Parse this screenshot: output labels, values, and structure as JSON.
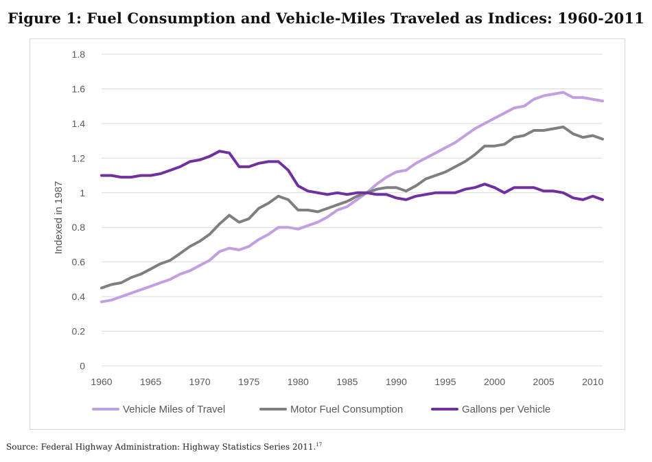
{
  "figure": {
    "title": "Figure 1: Fuel Consumption and Vehicle-Miles Traveled as Indices: 1960-2011",
    "source": "Source: Federal Highway Administration: Highway Statistics Series 2011.",
    "source_footnote": "17"
  },
  "chart_data": {
    "type": "line",
    "title": "Figure 1: Fuel Consumption and Vehicle-Miles Traveled as Indices: 1960-2011",
    "xlabel": "",
    "ylabel": "Indexed in 1987",
    "xlim": [
      1960,
      2011
    ],
    "ylim": [
      0,
      1.8
    ],
    "xticks": [
      "1960",
      "1965",
      "1970",
      "1975",
      "1980",
      "1985",
      "1990",
      "1995",
      "2000",
      "2005",
      "2010"
    ],
    "yticks": [
      "0",
      "0.2",
      "0.4",
      "0.6",
      "0.8",
      "1",
      "1.2",
      "1.4",
      "1.6",
      "1.8"
    ],
    "grid": true,
    "legend_position": "bottom",
    "x": [
      1960,
      1961,
      1962,
      1963,
      1964,
      1965,
      1966,
      1967,
      1968,
      1969,
      1970,
      1971,
      1972,
      1973,
      1974,
      1975,
      1976,
      1977,
      1978,
      1979,
      1980,
      1981,
      1982,
      1983,
      1984,
      1985,
      1986,
      1987,
      1988,
      1989,
      1990,
      1991,
      1992,
      1993,
      1994,
      1995,
      1996,
      1997,
      1998,
      1999,
      2000,
      2001,
      2002,
      2003,
      2004,
      2005,
      2006,
      2007,
      2008,
      2009,
      2010,
      2011
    ],
    "series": [
      {
        "name": "Vehicle Miles of Travel",
        "color": "#c29fe0",
        "values": [
          0.37,
          0.38,
          0.4,
          0.42,
          0.44,
          0.46,
          0.48,
          0.5,
          0.53,
          0.55,
          0.58,
          0.61,
          0.66,
          0.68,
          0.67,
          0.69,
          0.73,
          0.76,
          0.8,
          0.8,
          0.79,
          0.81,
          0.83,
          0.86,
          0.9,
          0.92,
          0.96,
          1.0,
          1.05,
          1.09,
          1.12,
          1.13,
          1.17,
          1.2,
          1.23,
          1.26,
          1.29,
          1.33,
          1.37,
          1.4,
          1.43,
          1.46,
          1.49,
          1.5,
          1.54,
          1.56,
          1.57,
          1.58,
          1.55,
          1.55,
          1.54,
          1.53
        ]
      },
      {
        "name": "Motor Fuel Consumption",
        "color": "#7f7f7f",
        "values": [
          0.45,
          0.47,
          0.48,
          0.51,
          0.53,
          0.56,
          0.59,
          0.61,
          0.65,
          0.69,
          0.72,
          0.76,
          0.82,
          0.87,
          0.83,
          0.85,
          0.91,
          0.94,
          0.98,
          0.96,
          0.9,
          0.9,
          0.89,
          0.91,
          0.93,
          0.95,
          0.98,
          1.0,
          1.02,
          1.03,
          1.03,
          1.01,
          1.04,
          1.08,
          1.1,
          1.12,
          1.15,
          1.18,
          1.22,
          1.27,
          1.27,
          1.28,
          1.32,
          1.33,
          1.36,
          1.36,
          1.37,
          1.38,
          1.34,
          1.32,
          1.33,
          1.31
        ]
      },
      {
        "name": "Gallons per Vehicle",
        "color": "#7030a0",
        "values": [
          1.1,
          1.1,
          1.09,
          1.09,
          1.1,
          1.1,
          1.11,
          1.13,
          1.15,
          1.18,
          1.19,
          1.21,
          1.24,
          1.23,
          1.15,
          1.15,
          1.17,
          1.18,
          1.18,
          1.13,
          1.04,
          1.01,
          1.0,
          0.99,
          1.0,
          0.99,
          1.0,
          1.0,
          0.99,
          0.99,
          0.97,
          0.96,
          0.98,
          0.99,
          1.0,
          1.0,
          1.0,
          1.02,
          1.03,
          1.05,
          1.03,
          1.0,
          1.03,
          1.03,
          1.03,
          1.01,
          1.01,
          1.0,
          0.97,
          0.96,
          0.98,
          0.96
        ]
      }
    ]
  }
}
